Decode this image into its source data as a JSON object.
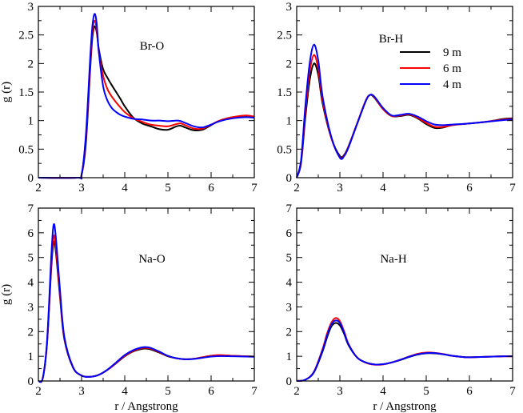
{
  "chart_data": [
    {
      "type": "line",
      "title": "Br-O",
      "xlabel": "",
      "ylabel": "g (r)",
      "xlim": [
        2,
        7
      ],
      "ylim": [
        0,
        3
      ],
      "xticks": [
        2,
        3,
        4,
        5,
        6,
        7
      ],
      "yticks": [
        0,
        0.5,
        1,
        1.5,
        2,
        2.5,
        3
      ],
      "xtick_labels": [
        "2",
        "3",
        "4",
        "5",
        "6",
        "7"
      ],
      "ytick_labels": [
        "0",
        "0.5",
        "1",
        "1.5",
        "2",
        "2.5",
        "3"
      ],
      "series": [
        {
          "name": "9 m",
          "color": "#000000",
          "x": [
            2.0,
            2.9,
            3.0,
            3.1,
            3.2,
            3.25,
            3.3,
            3.35,
            3.4,
            3.5,
            3.6,
            3.7,
            3.8,
            3.9,
            4.0,
            4.2,
            4.4,
            4.6,
            4.8,
            5.0,
            5.2,
            5.3,
            5.4,
            5.6,
            5.8,
            6.0,
            6.2,
            6.5,
            6.8,
            7.0
          ],
          "y": [
            0.0,
            0.0,
            0.05,
            0.6,
            1.9,
            2.45,
            2.65,
            2.55,
            2.25,
            1.9,
            1.75,
            1.62,
            1.5,
            1.38,
            1.25,
            1.05,
            0.95,
            0.9,
            0.85,
            0.84,
            0.9,
            0.91,
            0.88,
            0.83,
            0.84,
            0.92,
            1.0,
            1.06,
            1.08,
            1.06
          ]
        },
        {
          "name": "6 m",
          "color": "#ff0000",
          "x": [
            2.0,
            2.9,
            3.0,
            3.1,
            3.2,
            3.25,
            3.3,
            3.35,
            3.4,
            3.5,
            3.6,
            3.7,
            3.8,
            3.9,
            4.0,
            4.2,
            4.4,
            4.6,
            4.8,
            5.0,
            5.2,
            5.3,
            5.4,
            5.6,
            5.8,
            6.0,
            6.2,
            6.5,
            6.8,
            7.0
          ],
          "y": [
            0.0,
            0.0,
            0.05,
            0.7,
            2.0,
            2.55,
            2.75,
            2.6,
            2.2,
            1.78,
            1.55,
            1.42,
            1.32,
            1.23,
            1.15,
            1.04,
            0.98,
            0.93,
            0.91,
            0.9,
            0.94,
            0.95,
            0.92,
            0.86,
            0.86,
            0.93,
            1.0,
            1.06,
            1.09,
            1.07
          ]
        },
        {
          "name": "4 m",
          "color": "#0000ff",
          "x": [
            2.0,
            2.9,
            3.0,
            3.1,
            3.2,
            3.25,
            3.3,
            3.35,
            3.4,
            3.5,
            3.6,
            3.7,
            3.8,
            3.9,
            4.0,
            4.2,
            4.4,
            4.6,
            4.8,
            5.0,
            5.2,
            5.3,
            5.4,
            5.6,
            5.8,
            6.0,
            6.2,
            6.5,
            6.8,
            7.0
          ],
          "y": [
            0.0,
            0.0,
            0.05,
            0.75,
            2.1,
            2.65,
            2.87,
            2.7,
            2.2,
            1.6,
            1.35,
            1.22,
            1.15,
            1.1,
            1.07,
            1.03,
            1.02,
            1.0,
            1.0,
            0.99,
            1.0,
            0.99,
            0.96,
            0.9,
            0.88,
            0.93,
            0.99,
            1.04,
            1.06,
            1.05
          ]
        }
      ]
    },
    {
      "type": "line",
      "title": "Br-H",
      "xlabel": "",
      "ylabel": "",
      "xlim": [
        2,
        7
      ],
      "ylim": [
        0,
        3
      ],
      "xticks": [
        2,
        3,
        4,
        5,
        6,
        7
      ],
      "yticks": [
        0,
        0.5,
        1,
        1.5,
        2,
        2.5,
        3
      ],
      "xtick_labels": [
        "2",
        "3",
        "4",
        "5",
        "6",
        "7"
      ],
      "ytick_labels": [
        "0",
        "0.5",
        "1",
        "1.5",
        "2",
        "2.5",
        "3"
      ],
      "legend": [
        "9 m",
        "6 m",
        "4 m"
      ],
      "series": [
        {
          "name": "9 m",
          "color": "#000000",
          "x": [
            2.0,
            2.1,
            2.2,
            2.3,
            2.4,
            2.5,
            2.6,
            2.8,
            3.0,
            3.1,
            3.2,
            3.4,
            3.6,
            3.7,
            3.8,
            4.0,
            4.2,
            4.4,
            4.6,
            4.8,
            5.0,
            5.2,
            5.4,
            5.6,
            6.0,
            6.4,
            6.8,
            7.0
          ],
          "y": [
            0.0,
            0.25,
            1.05,
            1.7,
            2.0,
            1.8,
            1.3,
            0.7,
            0.38,
            0.4,
            0.55,
            0.95,
            1.35,
            1.45,
            1.4,
            1.2,
            1.08,
            1.08,
            1.1,
            1.04,
            0.94,
            0.87,
            0.88,
            0.92,
            0.95,
            0.98,
            1.03,
            1.04
          ]
        },
        {
          "name": "6 m",
          "color": "#ff0000",
          "x": [
            2.0,
            2.1,
            2.2,
            2.3,
            2.4,
            2.5,
            2.6,
            2.8,
            3.0,
            3.1,
            3.2,
            3.4,
            3.6,
            3.7,
            3.8,
            4.0,
            4.2,
            4.4,
            4.6,
            4.8,
            5.0,
            5.2,
            5.4,
            5.6,
            6.0,
            6.4,
            6.8,
            7.0
          ],
          "y": [
            0.0,
            0.28,
            1.15,
            1.85,
            2.15,
            1.9,
            1.35,
            0.7,
            0.36,
            0.39,
            0.54,
            0.95,
            1.35,
            1.45,
            1.41,
            1.2,
            1.08,
            1.09,
            1.11,
            1.05,
            0.96,
            0.89,
            0.89,
            0.92,
            0.95,
            0.98,
            1.02,
            1.03
          ]
        },
        {
          "name": "4 m",
          "color": "#0000ff",
          "x": [
            2.0,
            2.1,
            2.2,
            2.3,
            2.4,
            2.5,
            2.6,
            2.8,
            3.0,
            3.1,
            3.2,
            3.4,
            3.6,
            3.7,
            3.8,
            4.0,
            4.2,
            4.4,
            4.6,
            4.8,
            5.0,
            5.2,
            5.4,
            5.6,
            6.0,
            6.4,
            6.8,
            7.0
          ],
          "y": [
            0.0,
            0.3,
            1.25,
            2.0,
            2.33,
            2.05,
            1.42,
            0.72,
            0.35,
            0.38,
            0.53,
            0.94,
            1.34,
            1.45,
            1.42,
            1.22,
            1.09,
            1.1,
            1.12,
            1.07,
            0.99,
            0.93,
            0.92,
            0.93,
            0.95,
            0.98,
            1.01,
            1.02
          ]
        }
      ]
    },
    {
      "type": "line",
      "title": "Na-O",
      "xlabel": "r / Angstrong",
      "ylabel": "g (r)",
      "xlim": [
        2,
        7
      ],
      "ylim": [
        0,
        7
      ],
      "xticks": [
        2,
        3,
        4,
        5,
        6,
        7
      ],
      "yticks": [
        0,
        1,
        2,
        3,
        4,
        5,
        6,
        7
      ],
      "xtick_labels": [
        "2",
        "3",
        "4",
        "5",
        "6",
        "7"
      ],
      "ytick_labels": [
        "0",
        "1",
        "2",
        "3",
        "4",
        "5",
        "6",
        "7"
      ],
      "series": [
        {
          "name": "9 m",
          "color": "#000000",
          "x": [
            2.0,
            2.1,
            2.2,
            2.3,
            2.35,
            2.4,
            2.5,
            2.6,
            2.8,
            3.0,
            3.2,
            3.4,
            3.6,
            3.8,
            4.0,
            4.2,
            4.4,
            4.5,
            4.6,
            4.8,
            5.0,
            5.2,
            5.4,
            5.6,
            5.8,
            6.0,
            6.2,
            6.5,
            6.8,
            7.0
          ],
          "y": [
            0.0,
            0.1,
            1.5,
            4.6,
            5.6,
            5.3,
            3.4,
            1.7,
            0.55,
            0.22,
            0.17,
            0.25,
            0.45,
            0.72,
            1.0,
            1.2,
            1.3,
            1.31,
            1.28,
            1.15,
            1.0,
            0.92,
            0.88,
            0.9,
            0.96,
            1.02,
            1.04,
            1.02,
            1.0,
            0.99
          ]
        },
        {
          "name": "6 m",
          "color": "#ff0000",
          "x": [
            2.0,
            2.1,
            2.2,
            2.3,
            2.35,
            2.4,
            2.5,
            2.6,
            2.8,
            3.0,
            3.2,
            3.4,
            3.6,
            3.8,
            4.0,
            4.2,
            4.4,
            4.5,
            4.6,
            4.8,
            5.0,
            5.2,
            5.4,
            5.6,
            5.8,
            6.0,
            6.2,
            6.5,
            6.8,
            7.0
          ],
          "y": [
            0.0,
            0.1,
            1.55,
            4.8,
            5.85,
            5.5,
            3.5,
            1.75,
            0.56,
            0.22,
            0.17,
            0.25,
            0.45,
            0.73,
            1.02,
            1.22,
            1.33,
            1.34,
            1.31,
            1.17,
            1.01,
            0.92,
            0.88,
            0.9,
            0.96,
            1.02,
            1.05,
            1.02,
            1.0,
            0.99
          ]
        },
        {
          "name": "4 m",
          "color": "#0000ff",
          "x": [
            2.0,
            2.1,
            2.2,
            2.3,
            2.35,
            2.4,
            2.5,
            2.6,
            2.8,
            3.0,
            3.2,
            3.4,
            3.6,
            3.8,
            4.0,
            4.2,
            4.4,
            4.5,
            4.6,
            4.8,
            5.0,
            5.2,
            5.4,
            5.6,
            5.8,
            6.0,
            6.2,
            6.5,
            6.8,
            7.0
          ],
          "y": [
            0.0,
            0.1,
            1.6,
            5.1,
            6.3,
            5.9,
            3.7,
            1.8,
            0.57,
            0.22,
            0.17,
            0.25,
            0.46,
            0.75,
            1.05,
            1.25,
            1.36,
            1.37,
            1.34,
            1.19,
            1.02,
            0.92,
            0.88,
            0.89,
            0.94,
            0.99,
            1.01,
            1.0,
            0.99,
            0.98
          ]
        }
      ]
    },
    {
      "type": "line",
      "title": "Na-H",
      "xlabel": "r / Angstrong",
      "ylabel": "",
      "xlim": [
        2,
        7
      ],
      "ylim": [
        0,
        7
      ],
      "xticks": [
        2,
        3,
        4,
        5,
        6,
        7
      ],
      "yticks": [
        0,
        1,
        2,
        3,
        4,
        5,
        6,
        7
      ],
      "xtick_labels": [
        "2",
        "3",
        "4",
        "5",
        "6",
        "7"
      ],
      "ytick_labels": [
        "0",
        "1",
        "2",
        "3",
        "4",
        "5",
        "6",
        "7"
      ],
      "series": [
        {
          "name": "9 m",
          "color": "#000000",
          "x": [
            2.0,
            2.2,
            2.4,
            2.6,
            2.7,
            2.8,
            2.9,
            3.0,
            3.1,
            3.2,
            3.4,
            3.6,
            3.8,
            4.0,
            4.2,
            4.4,
            4.6,
            4.8,
            5.0,
            5.2,
            5.4,
            5.6,
            5.8,
            6.0,
            6.4,
            6.8,
            7.0
          ],
          "y": [
            0.0,
            0.05,
            0.35,
            1.2,
            1.75,
            2.2,
            2.35,
            2.25,
            1.9,
            1.45,
            0.95,
            0.75,
            0.67,
            0.68,
            0.75,
            0.85,
            0.97,
            1.07,
            1.12,
            1.12,
            1.08,
            1.02,
            0.98,
            0.96,
            0.98,
            1.0,
            1.0
          ]
        },
        {
          "name": "6 m",
          "color": "#ff0000",
          "x": [
            2.0,
            2.2,
            2.4,
            2.6,
            2.7,
            2.8,
            2.9,
            3.0,
            3.1,
            3.2,
            3.4,
            3.6,
            3.8,
            4.0,
            4.2,
            4.4,
            4.6,
            4.8,
            5.0,
            5.2,
            5.4,
            5.6,
            5.8,
            6.0,
            6.4,
            6.8,
            7.0
          ],
          "y": [
            0.0,
            0.05,
            0.38,
            1.3,
            1.9,
            2.35,
            2.55,
            2.42,
            2.0,
            1.5,
            0.95,
            0.74,
            0.66,
            0.67,
            0.75,
            0.86,
            0.99,
            1.1,
            1.15,
            1.14,
            1.09,
            1.02,
            0.98,
            0.96,
            0.98,
            1.0,
            1.0
          ]
        },
        {
          "name": "4 m",
          "color": "#0000ff",
          "x": [
            2.0,
            2.2,
            2.4,
            2.6,
            2.7,
            2.8,
            2.9,
            3.0,
            3.1,
            3.2,
            3.4,
            3.6,
            3.8,
            4.0,
            4.2,
            4.4,
            4.6,
            4.8,
            5.0,
            5.2,
            5.4,
            5.6,
            5.8,
            6.0,
            6.4,
            6.8,
            7.0
          ],
          "y": [
            0.0,
            0.05,
            0.36,
            1.25,
            1.82,
            2.28,
            2.45,
            2.35,
            1.95,
            1.48,
            0.95,
            0.75,
            0.67,
            0.68,
            0.75,
            0.86,
            0.98,
            1.08,
            1.13,
            1.13,
            1.08,
            1.02,
            0.98,
            0.96,
            0.98,
            1.0,
            1.0
          ]
        }
      ]
    }
  ]
}
